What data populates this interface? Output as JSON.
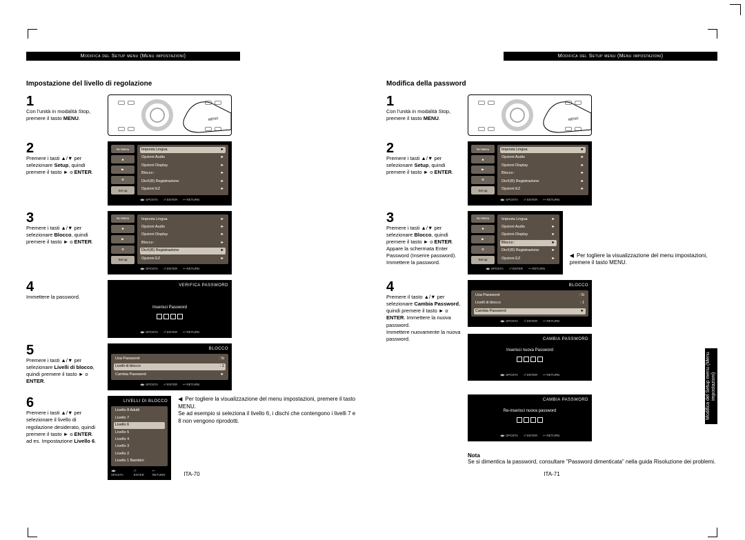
{
  "header_label": "Modifica del Setup menu (Menu impostazioni)",
  "side_tab_label": "Modifica del Setup\nmenu (Menu\nimpostazioni)",
  "page_left_no": "ITA-70",
  "page_right_no": "ITA-71",
  "left": {
    "title": "Impostazione del livello di regolazione",
    "s1": {
      "num": "1",
      "text": "Con l'unità in modalità Stop, premere il tasto <b>MENU</b>."
    },
    "s2": {
      "num": "2",
      "text": "Premere i tasti ▲/▼ per selezionare <b>Setup</b>, quindi premere il tasto ► o <b>ENTER</b>."
    },
    "s3": {
      "num": "3",
      "text": "Premere i tasti ▲/▼ per selezionare <b>Blocco</b>, quindi premere il tasto ► o <b>ENTER</b>."
    },
    "s4": {
      "num": "4",
      "text": "Immettere la password."
    },
    "s5": {
      "num": "5",
      "text": "Premere i tasti ▲/▼ per selezionare <b>Livelli di blocco</b>, quindi premere il tasto ► o <b>ENTER</b>."
    },
    "s6": {
      "num": "6",
      "text": "Premere i tasti ▲/▼ per selezionare il livello di regolazione desiderato, quindi premere il tasto ► o <b>ENTER</b>.<br>ad es. Impostazione <b>Livello 6</b>."
    },
    "note6": "Per togliere la visualizzazione del menu impostazioni, premere il tasto MENU.<br>Se ad esempio si seleziona il livello 6, i dischi che contengono i livelli 7 e 8 non vengono riprodotti."
  },
  "right": {
    "title": "Modifica della password",
    "s1": {
      "num": "1",
      "text": "Con l'unità in modalità Stop, premere il tasto <b>MENU</b>."
    },
    "s2": {
      "num": "2",
      "text": "Premere i tasti ▲/▼ per selezionare <b>Setup</b>, quindi premere il tasto ► o <b>ENTER</b>."
    },
    "s3": {
      "num": "3",
      "text": "Premere i tasti ▲/▼ per selezionare <b>Blocco</b>, quindi premere il tasto ► o <b>ENTER</b>.<br>Appare la schermata Enter Password (Inserire password). Immettere la password."
    },
    "note3": "Per togliere la visualizzazione del menu impostazioni, premere il tasto MENU.",
    "s4": {
      "num": "4",
      "text": "Premere il tasto ▲/▼ per selezionare <b>Cambia Password</b>, quindi premere il tasto ► o <b>ENTER</b>. Immettere la nuova password.<br>Immettere nuovamente la nuova password."
    },
    "nota_head": "Nota",
    "nota_body": "Se si dimentica la password, consultare &quot;Password dimenticata&quot; nella guida Risoluzione dei problemi."
  },
  "osd": {
    "tabs": [
      "No Menu",
      "■",
      "▶",
      "⚙",
      "Set up"
    ],
    "setup_items": [
      "Imposta Lingua",
      "Opzioni Audio",
      "Opzioni Display",
      "Blocco :",
      "DivX(R) Registrazione",
      "Opzioni EZ"
    ],
    "footer": [
      "◀▶ SPOSTA",
      "⏎ ENTER",
      "↩ RETURN"
    ],
    "titles": {
      "verify": "VERIFICA PASSWORD",
      "enter": "Inserisci Password",
      "blocco": "BLOCCO",
      "levels": "LIVELLI DI BLOCCO",
      "cambia": "CAMBIA PASSWORD",
      "new": "Inserisci nuova Password",
      "re": "Re-inserisci nuova password"
    },
    "blocco_rows": [
      {
        "l": "Usa Password",
        "r": ": Si"
      },
      {
        "l": "Livelli di blocco",
        "r": ": 1"
      },
      {
        "l": "Cambia Password",
        "r": ""
      }
    ],
    "level_rows": [
      "Livello 8 Adulti",
      "Livello 7",
      "Livello 6",
      "Livello 5",
      "Livello 4",
      "Livello 3",
      "Livello 2",
      "Livello 1 Bambini"
    ]
  },
  "colors": {
    "bg": "#ffffff",
    "black": "#000000",
    "osd_panel": "#5a5046",
    "osd_tab": "#6b6259",
    "osd_tab_sel": "#b5aca0",
    "osd_row_sel": "#cfc7ba"
  }
}
